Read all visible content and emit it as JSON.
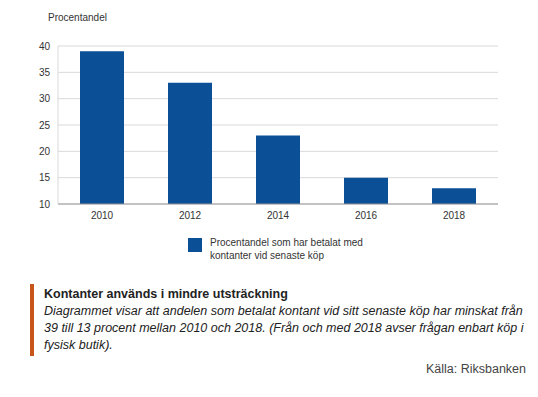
{
  "chart_data": {
    "type": "bar",
    "y_label": "Procentandel",
    "categories": [
      "2010",
      "2012",
      "2014",
      "2016",
      "2018"
    ],
    "series": [
      {
        "name": "Procentandel som har betalat med kontanter vid senaste köp",
        "color": "#0b4f96",
        "values": [
          39,
          33,
          23,
          15,
          13
        ]
      }
    ],
    "ylim": [
      10,
      40
    ],
    "yticks": [
      10,
      15,
      20,
      25,
      30,
      35,
      40
    ],
    "grid": true,
    "legend": "bottom",
    "title": "Kontanter används i mindre utsträckning",
    "subtitle": "Diagrammet visar att andelen som betalat kontant vid sitt senaste köp har minskat från 39 till 13 procent mellan 2010 och 2018. (Från och med 2018 avser frågan enbart köp i fysisk butik).",
    "source": "Källa: Riksbanken"
  }
}
